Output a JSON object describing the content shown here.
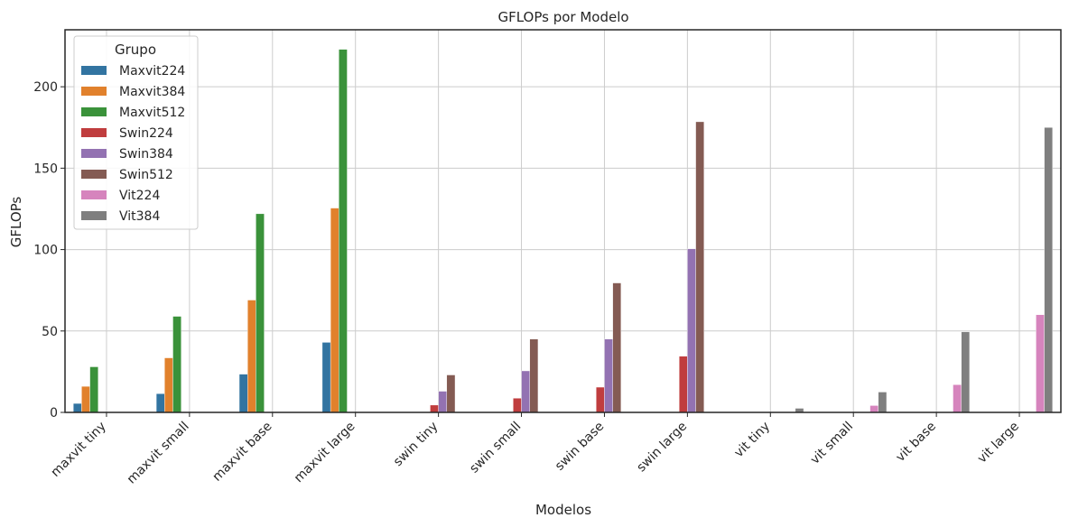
{
  "chart_data": {
    "type": "bar",
    "title": "GFLOPs por Modelo",
    "xlabel": "Modelos",
    "ylabel": "GFLOPs",
    "ylim": [
      0,
      235
    ],
    "yticks": [
      0,
      50,
      100,
      150,
      200
    ],
    "grid": true,
    "legend": {
      "title": "Grupo",
      "placement": "top-left"
    },
    "categories": [
      "maxvit tiny",
      "maxvit small",
      "maxvit base",
      "maxvit large",
      "swin tiny",
      "swin small",
      "swin base",
      "swin large",
      "vit tiny",
      "vit small",
      "vit base",
      "vit large"
    ],
    "series": [
      {
        "name": "Maxvit224",
        "color": "#3274a1",
        "values": [
          5.5,
          11.5,
          23.5,
          43,
          0,
          0,
          0,
          0,
          0,
          0,
          0,
          0
        ]
      },
      {
        "name": "Maxvit384",
        "color": "#e1812c",
        "values": [
          16,
          33.5,
          69,
          125.5,
          0,
          0,
          0,
          0,
          0,
          0,
          0,
          0
        ]
      },
      {
        "name": "Maxvit512",
        "color": "#3a923a",
        "values": [
          28,
          59,
          122,
          223,
          0,
          0,
          0,
          0,
          0,
          0,
          0,
          0
        ]
      },
      {
        "name": "Swin224",
        "color": "#c03d3e",
        "values": [
          0,
          0,
          0,
          0,
          4.5,
          8.7,
          15.5,
          34.5,
          0,
          0,
          0,
          0
        ]
      },
      {
        "name": "Swin384",
        "color": "#9372b2",
        "values": [
          0,
          0,
          0,
          0,
          13,
          25.5,
          45,
          100.5,
          0,
          0,
          0,
          0
        ]
      },
      {
        "name": "Swin512",
        "color": "#845b53",
        "values": [
          0,
          0,
          0,
          0,
          23,
          45,
          79.5,
          178.5,
          0,
          0,
          0,
          0
        ]
      },
      {
        "name": "Vit224",
        "color": "#d684bd",
        "values": [
          0,
          0,
          0,
          0,
          0,
          0,
          0,
          0,
          0,
          4.2,
          17,
          60
        ]
      },
      {
        "name": "Vit384",
        "color": "#7f7f7f",
        "values": [
          0,
          0,
          0,
          0,
          0,
          0,
          0,
          0,
          2.5,
          12.5,
          49.5,
          175
        ]
      }
    ]
  }
}
